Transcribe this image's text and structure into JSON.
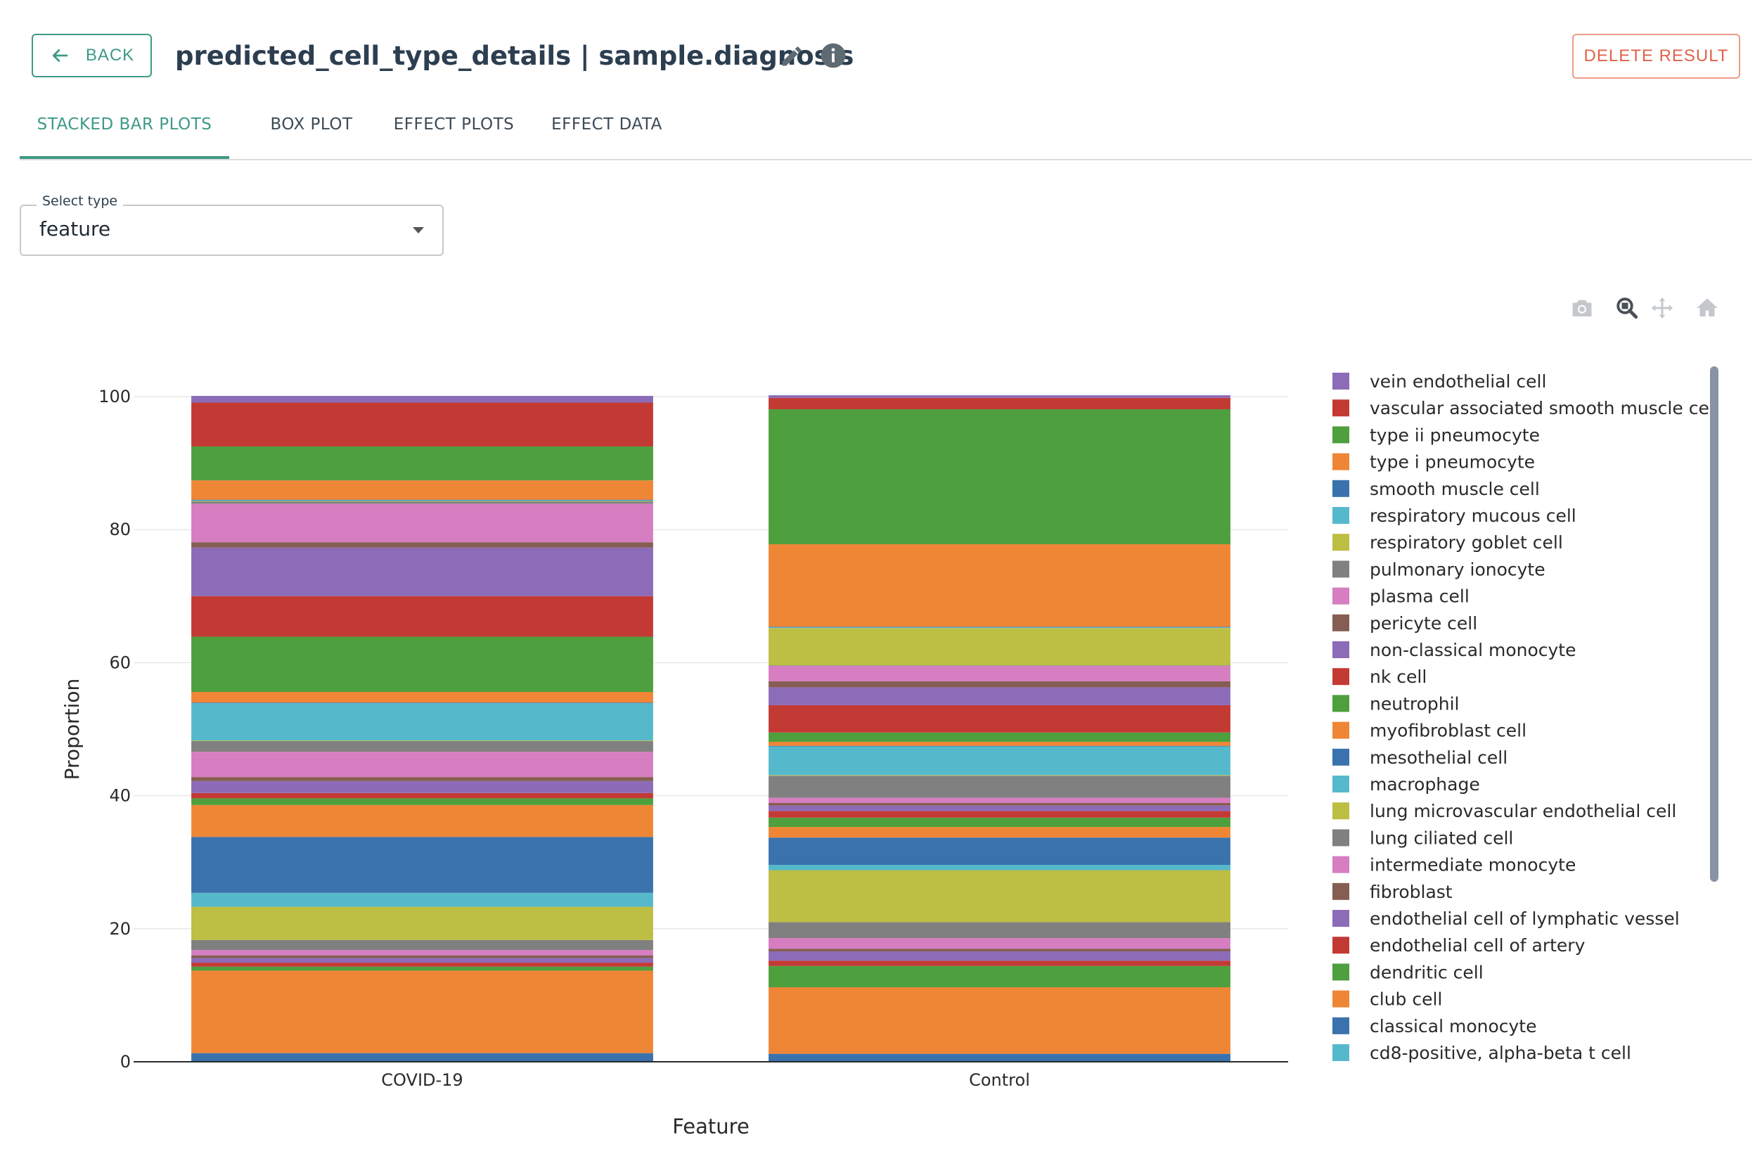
{
  "header": {
    "back_label": "BACK",
    "title": "predicted_cell_type_details | sample.diagnosis",
    "edit_icon": "pencil-icon",
    "info_icon": "info-icon",
    "delete_label": "DELETE RESULT"
  },
  "tabs": [
    {
      "label": "STACKED BAR PLOTS",
      "active": true
    },
    {
      "label": "BOX PLOT",
      "active": false
    },
    {
      "label": "EFFECT PLOTS",
      "active": false
    },
    {
      "label": "EFFECT DATA",
      "active": false
    }
  ],
  "select": {
    "label": "Select type",
    "value": "feature"
  },
  "toolbar": [
    "camera-icon",
    "zoom-icon",
    "pan-icon",
    "home-icon"
  ],
  "colors": {
    "accent": "#3d9a86",
    "danger": "#e0624a"
  },
  "chart_data": {
    "type": "bar",
    "stacked": true,
    "xlabel": "Feature",
    "ylabel": "Proportion",
    "ylim": [
      0,
      100
    ],
    "yticks": [
      0,
      20,
      40,
      60,
      80,
      100
    ],
    "categories": [
      "COVID-19",
      "Control"
    ],
    "grid": true,
    "legend_position": "right",
    "series": [
      {
        "name": "",
        "color": "#3a72ad",
        "values": [
          1.3,
          1.2
        ]
      },
      {
        "name": "",
        "color": "#ef8636",
        "values": [
          12.4,
          10.0
        ]
      },
      {
        "name": "",
        "color": "#4e9f3d",
        "values": [
          0.6,
          3.2
        ]
      },
      {
        "name": "",
        "color": "#c33a35",
        "values": [
          0.6,
          0.8
        ]
      },
      {
        "name": "",
        "color": "#8c6bb8",
        "values": [
          0.7,
          1.4
        ]
      },
      {
        "name": "",
        "color": "#855d52",
        "values": [
          0.4,
          0.4
        ]
      },
      {
        "name": "",
        "color": "#d67ec1",
        "values": [
          0.8,
          1.6
        ]
      },
      {
        "name": "",
        "color": "#808080",
        "values": [
          1.5,
          2.4
        ]
      },
      {
        "name": "",
        "color": "#bdbe44",
        "values": [
          5.0,
          7.8
        ]
      },
      {
        "name": "",
        "color": "#56b9cb",
        "values": [
          2.1,
          0.8
        ]
      },
      {
        "name": "cd8-positive, alpha-beta t cell",
        "color": "#56b9cb",
        "values": [
          0,
          0
        ]
      },
      {
        "name": "classical monocyte",
        "color": "#3a72ad",
        "values": [
          8.4,
          4.1
        ]
      },
      {
        "name": "club cell",
        "color": "#ef8636",
        "values": [
          4.8,
          1.6
        ]
      },
      {
        "name": "dendritic cell",
        "color": "#4e9f3d",
        "values": [
          1.0,
          1.4
        ]
      },
      {
        "name": "endothelial cell of artery",
        "color": "#c33a35",
        "values": [
          0.8,
          1.0
        ]
      },
      {
        "name": "endothelial cell of lymphatic vessel",
        "color": "#8c6bb8",
        "values": [
          1.8,
          0.8
        ]
      },
      {
        "name": "fibroblast",
        "color": "#855d52",
        "values": [
          0.6,
          0.4
        ]
      },
      {
        "name": "intermediate monocyte",
        "color": "#d67ec1",
        "values": [
          3.8,
          0.8
        ]
      },
      {
        "name": "lung ciliated cell",
        "color": "#808080",
        "values": [
          1.6,
          3.3
        ]
      },
      {
        "name": "lung microvascular endothelial cell",
        "color": "#bdbe44",
        "values": [
          0.1,
          0.1
        ]
      },
      {
        "name": "macrophage",
        "color": "#56b9cb",
        "values": [
          5.6,
          4.3
        ]
      },
      {
        "name": "mesothelial cell",
        "color": "#3a72ad",
        "values": [
          0.1,
          0.1
        ]
      },
      {
        "name": "myofibroblast cell",
        "color": "#ef8636",
        "values": [
          1.6,
          0.6
        ]
      },
      {
        "name": "neutrophil",
        "color": "#4e9f3d",
        "values": [
          8.3,
          1.4
        ]
      },
      {
        "name": "nk cell",
        "color": "#c33a35",
        "values": [
          6.1,
          4.1
        ]
      },
      {
        "name": "non-classical monocyte",
        "color": "#8c6bb8",
        "values": [
          7.3,
          2.7
        ]
      },
      {
        "name": "pericyte cell",
        "color": "#855d52",
        "values": [
          0.8,
          0.9
        ]
      },
      {
        "name": "plasma cell",
        "color": "#d67ec1",
        "values": [
          5.8,
          2.3
        ]
      },
      {
        "name": "pulmonary ionocyte",
        "color": "#808080",
        "values": [
          0.3,
          0.1
        ]
      },
      {
        "name": "respiratory goblet cell",
        "color": "#bdbe44",
        "values": [
          0.1,
          5.6
        ]
      },
      {
        "name": "respiratory mucous cell",
        "color": "#56b9cb",
        "values": [
          0.1,
          0.1
        ]
      },
      {
        "name": "smooth muscle cell",
        "color": "#3a72ad",
        "values": [
          0.1,
          0.1
        ]
      },
      {
        "name": "type i pneumocyte",
        "color": "#ef8636",
        "values": [
          2.9,
          12.4
        ]
      },
      {
        "name": "type ii pneumocyte",
        "color": "#4e9f3d",
        "values": [
          5.1,
          20.3
        ]
      },
      {
        "name": "vascular associated smooth muscle cell",
        "color": "#c33a35",
        "values": [
          6.6,
          1.7
        ]
      },
      {
        "name": "vein endothelial cell",
        "color": "#8c6bb8",
        "values": [
          1.0,
          0.4
        ]
      }
    ]
  }
}
